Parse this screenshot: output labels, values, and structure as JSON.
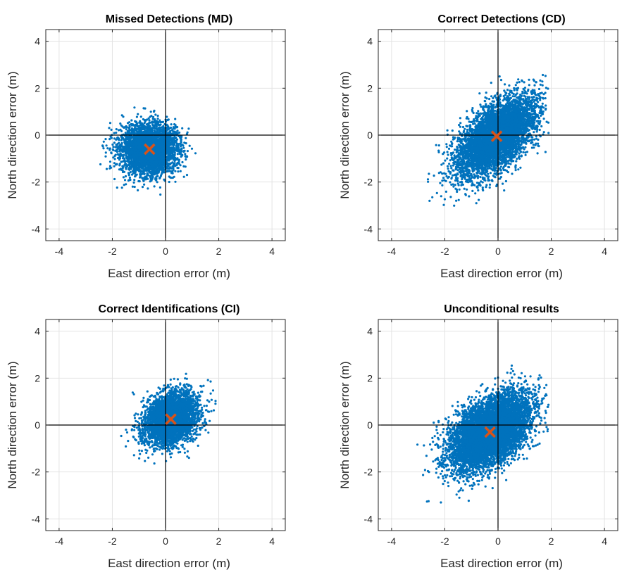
{
  "figure": {
    "background": "#ffffff",
    "point_color": "#0072bd",
    "mean_color": "#d95319",
    "grid_color": "#e3e3e3",
    "axis_color": "#262626"
  },
  "chart_data": [
    {
      "type": "scatter",
      "title": "Missed Detections (MD)",
      "xlabel": "East direction error (m)",
      "ylabel": "North direction error (m)",
      "xlim": [
        -4.5,
        4.5
      ],
      "ylim": [
        -4.5,
        4.5
      ],
      "xticks": [
        "-4",
        "-2",
        "0",
        "2",
        "4"
      ],
      "yticks": [
        "-4",
        "-2",
        "0",
        "2",
        "4"
      ],
      "grid": true,
      "mean": {
        "x": -0.6,
        "y": -0.6
      },
      "cloud": {
        "mean": [
          -0.6,
          -0.6
        ],
        "std": [
          0.55,
          0.55
        ],
        "corr": 0.0,
        "n": 3500,
        "x_range": [
          -2.6,
          1.7
        ],
        "y_range": [
          -2.6,
          1.5
        ]
      }
    },
    {
      "type": "scatter",
      "title": "Correct Detections (CD)",
      "xlabel": "East direction error (m)",
      "ylabel": "North direction error (m)",
      "xlim": [
        -4.5,
        4.5
      ],
      "ylim": [
        -4.5,
        4.5
      ],
      "xticks": [
        "-4",
        "-2",
        "0",
        "2",
        "4"
      ],
      "yticks": [
        "-4",
        "-2",
        "0",
        "2",
        "4"
      ],
      "grid": true,
      "mean": {
        "x": -0.05,
        "y": -0.05
      },
      "cloud": {
        "mean": [
          -0.05,
          -0.05
        ],
        "std": [
          0.75,
          0.85
        ],
        "corr": 0.6,
        "n": 5000,
        "x_range": [
          -3.6,
          1.9
        ],
        "y_range": [
          -3.5,
          2.7
        ]
      }
    },
    {
      "type": "scatter",
      "title": "Correct Identifications (CI)",
      "xlabel": "East direction error (m)",
      "ylabel": "North direction error (m)",
      "xlim": [
        -4.5,
        4.5
      ],
      "ylim": [
        -4.5,
        4.5
      ],
      "xticks": [
        "-4",
        "-2",
        "0",
        "2",
        "4"
      ],
      "yticks": [
        "-4",
        "-2",
        "0",
        "2",
        "4"
      ],
      "grid": true,
      "mean": {
        "x": 0.2,
        "y": 0.25
      },
      "cloud": {
        "mean": [
          0.2,
          0.25
        ],
        "std": [
          0.5,
          0.55
        ],
        "corr": 0.25,
        "n": 4000,
        "x_range": [
          -1.7,
          1.9
        ],
        "y_range": [
          -2.5,
          2.7
        ]
      }
    },
    {
      "type": "scatter",
      "title": "Unconditional results",
      "xlabel": "East direction error (m)",
      "ylabel": "North direction error (m)",
      "xlim": [
        -4.5,
        4.5
      ],
      "ylim": [
        -4.5,
        4.5
      ],
      "xticks": [
        "-4",
        "-2",
        "0",
        "2",
        "4"
      ],
      "yticks": [
        "-4",
        "-2",
        "0",
        "2",
        "4"
      ],
      "grid": true,
      "mean": {
        "x": -0.3,
        "y": -0.3
      },
      "cloud": {
        "mean": [
          -0.3,
          -0.3
        ],
        "std": [
          0.75,
          0.8
        ],
        "corr": 0.5,
        "n": 7000,
        "x_range": [
          -3.6,
          1.9
        ],
        "y_range": [
          -3.5,
          2.7
        ]
      }
    }
  ]
}
